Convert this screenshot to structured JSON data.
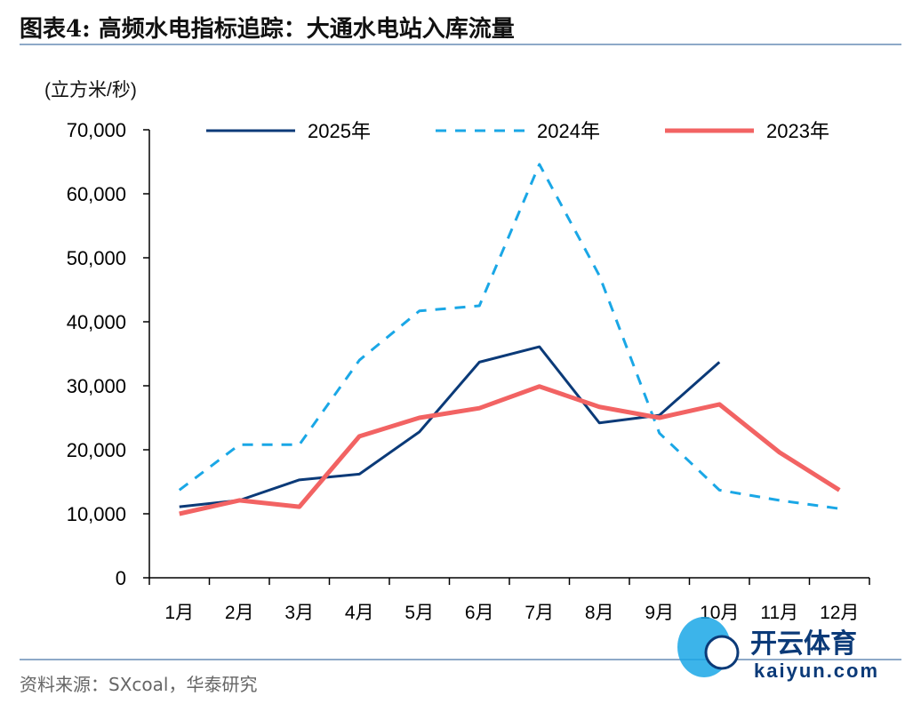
{
  "title": "图表4:   高频水电指标追踪：大通水电站入库流量",
  "source": "资料来源：SXcoal，华泰研究",
  "watermark": {
    "brand": "开云体育",
    "url": "kaiyun.com"
  },
  "colors": {
    "rule": "#8EA9C8",
    "s2025": "#0B3A78",
    "s2024": "#1AA7E6",
    "s2023": "#F26363"
  },
  "chart_data": {
    "type": "line",
    "ylabel": "(立方米/秒)",
    "ylim": [
      0,
      70000
    ],
    "yticks": [
      0,
      10000,
      20000,
      30000,
      40000,
      50000,
      60000,
      70000
    ],
    "ytick_labels": [
      "0",
      "10,000",
      "20,000",
      "30,000",
      "40,000",
      "50,000",
      "60,000",
      "70,000"
    ],
    "categories": [
      "1月",
      "2月",
      "3月",
      "4月",
      "5月",
      "6月",
      "7月",
      "8月",
      "9月",
      "10月",
      "11月",
      "12月"
    ],
    "legend_position": "top",
    "grid": false,
    "series": [
      {
        "name": "2025年",
        "style": "solid",
        "color": "#0B3A78",
        "values": [
          11100,
          12100,
          15300,
          16200,
          22800,
          33700,
          36100,
          24200,
          25400,
          33700,
          null,
          null
        ]
      },
      {
        "name": "2024年",
        "style": "dashed",
        "color": "#1AA7E6",
        "values": [
          13700,
          20800,
          20800,
          34000,
          41700,
          42500,
          64600,
          47200,
          22600,
          13700,
          12100,
          10800
        ]
      },
      {
        "name": "2023年",
        "style": "solid-thick",
        "color": "#F26363",
        "values": [
          10000,
          12100,
          11100,
          22100,
          25000,
          26500,
          29900,
          26700,
          25000,
          27100,
          19600,
          13700
        ]
      }
    ]
  }
}
